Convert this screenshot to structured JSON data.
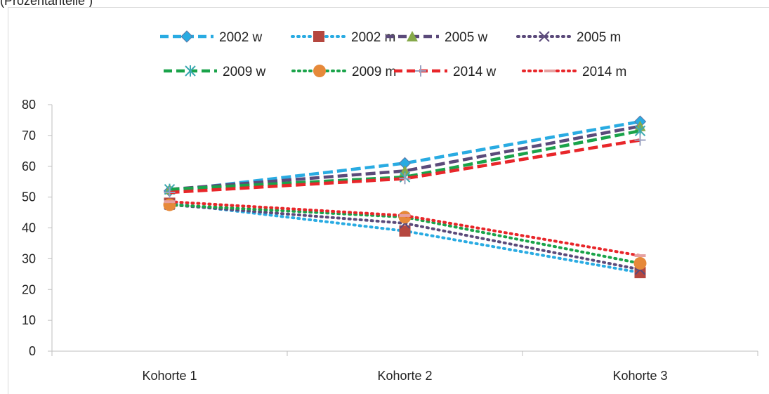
{
  "top_caption": "(Prozentanteile )",
  "chart_data": {
    "type": "line",
    "categories": [
      "Kohorte 1",
      "Kohorte 2",
      "Kohorte 3"
    ],
    "ylim": [
      0,
      80
    ],
    "yticks": [
      "0",
      "10",
      "20",
      "30",
      "40",
      "50",
      "60",
      "70",
      "80"
    ],
    "grid": false,
    "legend_position": "top",
    "series": [
      {
        "name": "2002 w",
        "values": [
          52,
          61,
          74.5
        ],
        "color": "#29abe2",
        "dash": "dashed",
        "marker": "diamond"
      },
      {
        "name": "2002 m",
        "values": [
          48,
          39,
          25.5
        ],
        "color": "#29abe2",
        "dash": "dotted",
        "marker": "square",
        "marker_color": "#b5473f"
      },
      {
        "name": "2005 w",
        "values": [
          52.5,
          58.5,
          73
        ],
        "color": "#5b4a7a",
        "dash": "dashed",
        "marker": "triangle",
        "marker_color": "#86a94a"
      },
      {
        "name": "2005 m",
        "values": [
          47.5,
          41.5,
          26.5
        ],
        "color": "#5b4a7a",
        "dash": "dotted",
        "marker": "x"
      },
      {
        "name": "2009 w",
        "values": [
          52.5,
          56.5,
          71.5
        ],
        "color": "#1aa34a",
        "dash": "dashed",
        "marker": "star",
        "marker_color": "#3aa9b0"
      },
      {
        "name": "2009 m",
        "values": [
          47.5,
          43.5,
          28.5
        ],
        "color": "#1aa34a",
        "dash": "dotted",
        "marker": "circle",
        "marker_color": "#e6893a"
      },
      {
        "name": "2014 w",
        "values": [
          51.5,
          56,
          68.5
        ],
        "color": "#e8262a",
        "dash": "dashed",
        "marker": "plus",
        "marker_color": "#9aa0c0"
      },
      {
        "name": "2014 m",
        "values": [
          48.5,
          44,
          31
        ],
        "color": "#e8262a",
        "dash": "dotted",
        "marker": "dash",
        "marker_color": "#e6a0a0"
      }
    ]
  }
}
